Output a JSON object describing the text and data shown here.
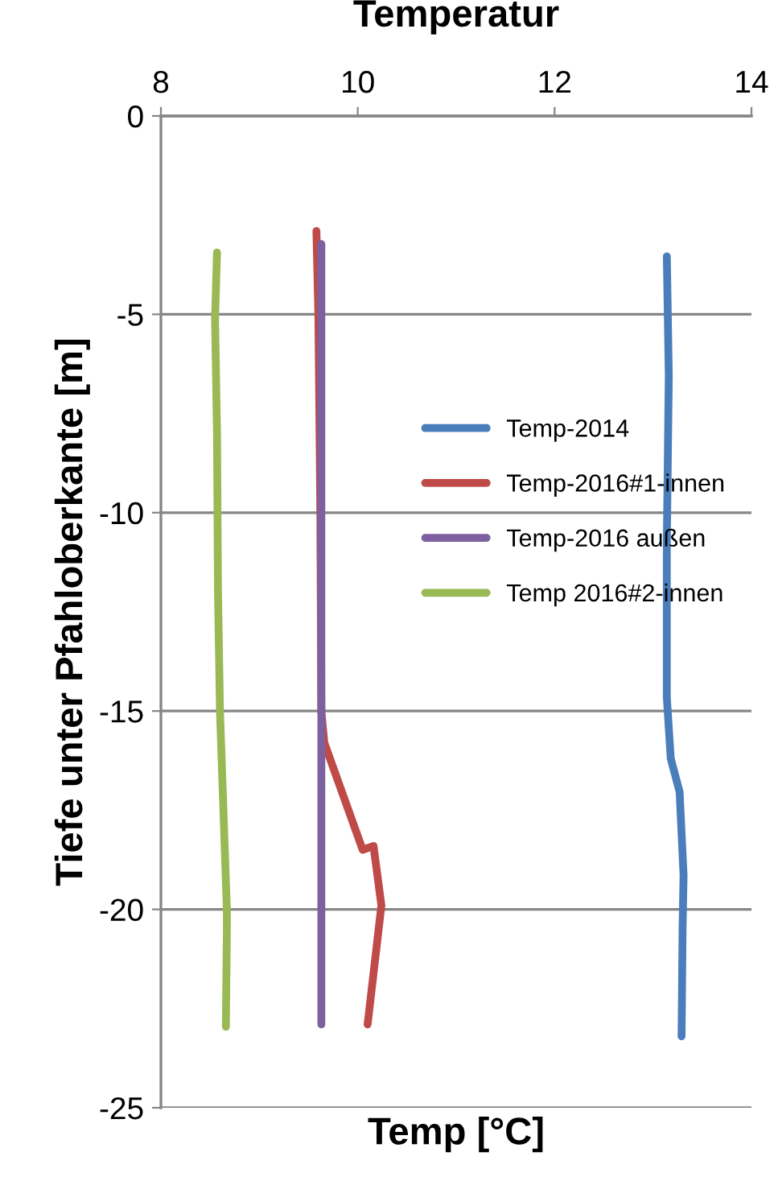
{
  "chart_data": {
    "type": "line",
    "title": "Temperatur",
    "xlabel": "Temp [°C]",
    "ylabel": "Tiefe unter Pfahloberkante [m]",
    "xlim": [
      8,
      14
    ],
    "xticks": [
      8,
      10,
      12,
      14
    ],
    "ylim": [
      -25,
      0
    ],
    "yticks": [
      -25,
      -20,
      -15,
      -10,
      -5,
      0
    ],
    "grid": "y",
    "legend": "right",
    "marker": "none",
    "line_style": "solid",
    "series": [
      {
        "name": "Temp-2014",
        "color": "#4a7ebb",
        "x": [
          13.14,
          13.16,
          13.14,
          13.14,
          13.18,
          13.27,
          13.31,
          13.3,
          13.29
        ],
        "values": [
          -3.54,
          -6.55,
          -10.75,
          -14.66,
          -16.2,
          -17.04,
          -19.14,
          -20.5,
          -23.2
        ]
      },
      {
        "name": "Temp-2016#1-innen",
        "color": "#be4b48",
        "x": [
          9.58,
          9.6,
          9.62,
          9.63,
          9.66,
          10.05,
          10.16,
          10.24,
          10.1
        ],
        "values": [
          -2.9,
          -5,
          -10,
          -15,
          -15.8,
          -18.5,
          -18.4,
          -19.9,
          -22.9
        ]
      },
      {
        "name": "Temp-2016 außen",
        "color": "#7d60a0",
        "x": [
          9.63,
          9.63,
          9.63
        ],
        "values": [
          -3.23,
          -13,
          -22.9
        ]
      },
      {
        "name": "Temp 2016#2-innen",
        "color": "#98b954",
        "x": [
          8.57,
          8.55,
          8.57,
          8.58,
          8.6,
          8.67,
          8.67,
          8.66
        ],
        "values": [
          -3.44,
          -5.1,
          -8,
          -12,
          -15,
          -20,
          -20.5,
          -22.96
        ]
      }
    ]
  }
}
